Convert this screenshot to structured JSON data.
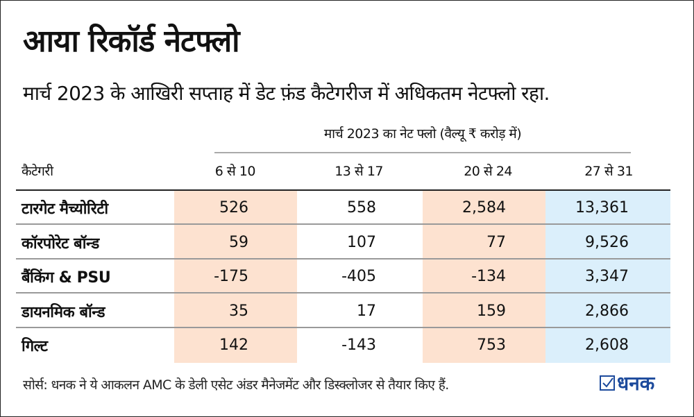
{
  "title": "आया रिकॉर्ड नेटफ्लो",
  "subtitle": "मार्च 2023 के आखिरी सप्ताह में डेट फ़ंड कैटेगरीज में अधिकतम नेटफ्लो रहा.",
  "source": "सोर्स: धनक ने ये आकलन AMC के डेली एसेट अंडर मैनेजमेंट और डिस्क्लोजर से तैयार किए हैं.",
  "logo": "धनक",
  "colors": {
    "peach": "#fde2d0",
    "blue": "#dbeffb",
    "logo": "#1c4a9c"
  },
  "chart_data": {
    "type": "table",
    "caption": "मार्च 2023 का नेट फ्लो (वैल्यू ₹ करोड़ में)",
    "columns": [
      "कैटेगरी",
      "6 से 10",
      "13 से 17",
      "20 से 24",
      "27 से 31"
    ],
    "rows": [
      {
        "category": "टारगेट मैच्योरिटी",
        "values": [
          "526",
          "558",
          "2,584",
          "13,361"
        ]
      },
      {
        "category": "कॉरपोरेट बॉन्ड",
        "values": [
          "59",
          "107",
          "77",
          "9,526"
        ]
      },
      {
        "category": "बैंकिंग & PSU",
        "values": [
          "-175",
          "-405",
          "-134",
          "3,347"
        ]
      },
      {
        "category": "डायनमिक बॉन्ड",
        "values": [
          "35",
          "17",
          "159",
          "2,866"
        ]
      },
      {
        "category": "गिल्ट",
        "values": [
          "142",
          "-143",
          "753",
          "2,608"
        ]
      }
    ]
  }
}
